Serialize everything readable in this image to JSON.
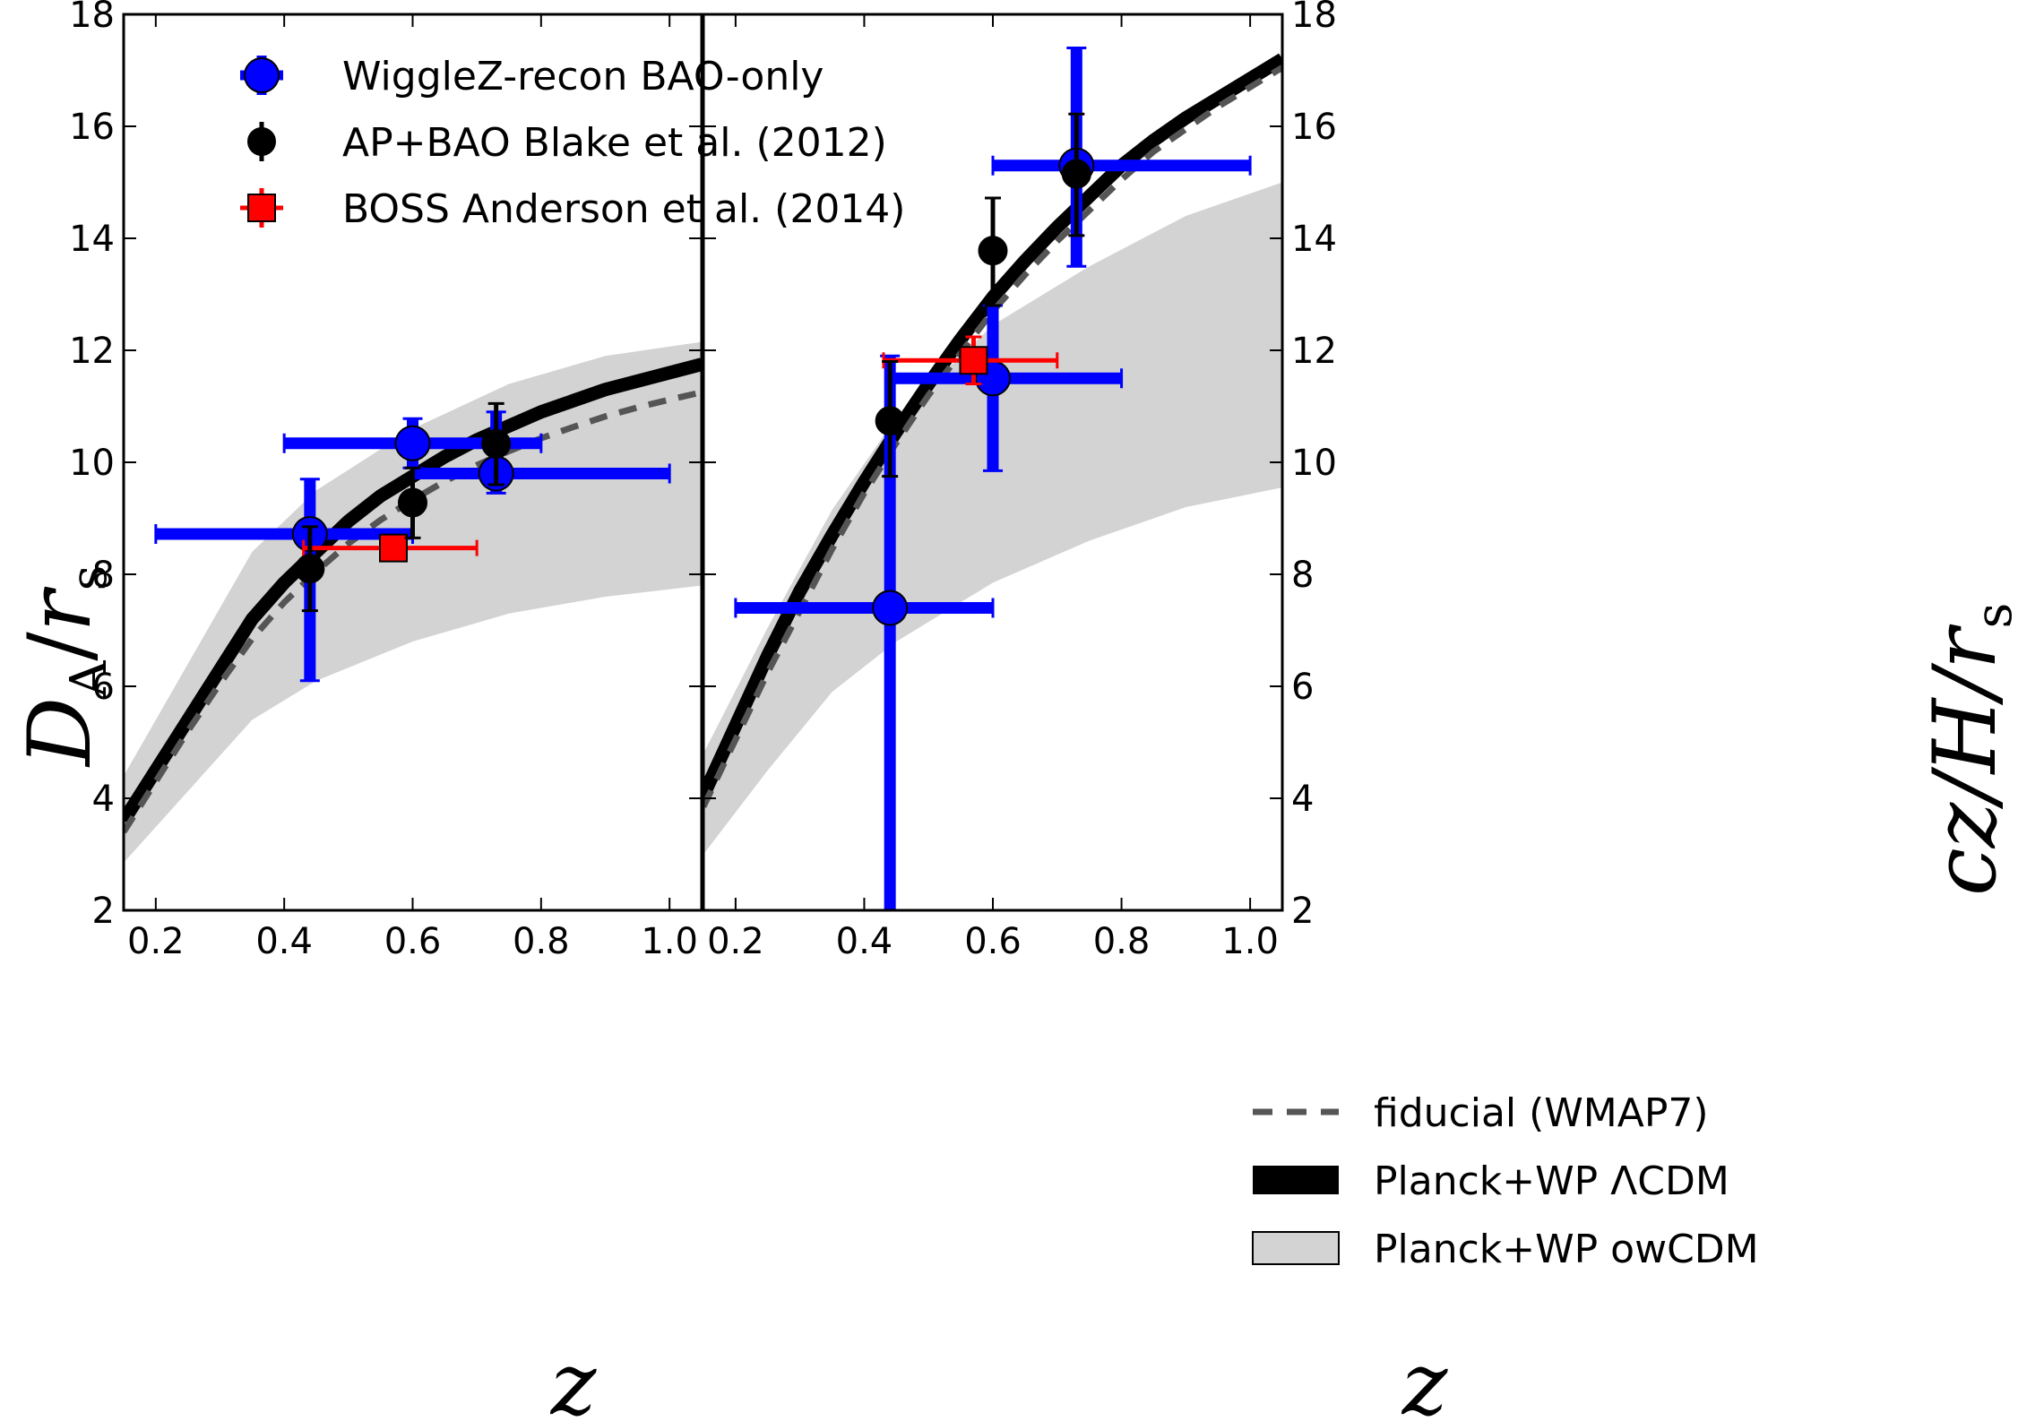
{
  "chart_data": [
    {
      "type": "scatter",
      "panel": "left",
      "xlabel": "z",
      "ylabel": "D_A/r_s",
      "ylabel_parts": {
        "main": "D",
        "sub1": "A",
        "slash": "/",
        "r": "r",
        "sub2": "s"
      },
      "xlim": [
        0.15,
        1.05
      ],
      "ylim": [
        2,
        18
      ],
      "xticks": [
        0.2,
        0.4,
        0.6,
        0.8,
        1.0
      ],
      "xtick_labels": [
        "0.2",
        "0.4",
        "0.6",
        "0.8",
        "1.0"
      ],
      "yticks": [
        2,
        4,
        6,
        8,
        10,
        12,
        14,
        16,
        18
      ],
      "ytick_labels": [
        "2",
        "4",
        "6",
        "8",
        "10",
        "12",
        "14",
        "16",
        "18"
      ],
      "legend": {
        "position": "top-left",
        "entries": [
          {
            "label": "WiggleZ-recon BAO-only",
            "color": "#0000ff",
            "marker": "circle"
          },
          {
            "label": "AP+BAO Blake et al. (2012)",
            "color": "#000000",
            "marker": "circle"
          },
          {
            "label": "BOSS Anderson et al. (2014)",
            "color": "#ff0000",
            "marker": "square"
          }
        ]
      },
      "series": [
        {
          "name": "WiggleZ-recon BAO-only",
          "color": "#0000ff",
          "marker": "circle",
          "points": [
            {
              "x": 0.44,
              "y": 8.72,
              "xerr": [
                0.2,
                0.6
              ],
              "yerr": [
                6.1,
                9.7
              ]
            },
            {
              "x": 0.6,
              "y": 10.34,
              "xerr": [
                0.4,
                0.8
              ],
              "yerr": [
                9.9,
                10.78
              ]
            },
            {
              "x": 0.73,
              "y": 9.8,
              "xerr": [
                0.6,
                1.0
              ],
              "yerr": [
                9.45,
                10.9
              ]
            }
          ]
        },
        {
          "name": "AP+BAO Blake et al. (2012)",
          "color": "#000000",
          "marker": "circle",
          "points": [
            {
              "x": 0.44,
              "y": 8.1,
              "yerr": [
                7.35,
                8.85
              ]
            },
            {
              "x": 0.6,
              "y": 9.28,
              "yerr": [
                8.65,
                9.9
              ]
            },
            {
              "x": 0.73,
              "y": 10.33,
              "yerr": [
                9.6,
                11.05
              ]
            }
          ]
        },
        {
          "name": "BOSS Anderson et al. (2014)",
          "color": "#ff0000",
          "marker": "square",
          "points": [
            {
              "x": 0.57,
              "y": 8.47,
              "xerr": [
                0.43,
                0.7
              ],
              "yerr": [
                8.33,
                8.61
              ]
            }
          ]
        },
        {
          "name": "fiducial (WMAP7)",
          "color": "#555555",
          "style": "dashed",
          "x": [
            0.15,
            0.2,
            0.25,
            0.3,
            0.35,
            0.4,
            0.45,
            0.5,
            0.55,
            0.6,
            0.65,
            0.7,
            0.75,
            0.8,
            0.85,
            0.9,
            0.95,
            1.0,
            1.05
          ],
          "y": [
            3.4,
            4.3,
            5.2,
            6.05,
            6.85,
            7.5,
            8.05,
            8.55,
            8.97,
            9.33,
            9.66,
            9.95,
            10.2,
            10.43,
            10.63,
            10.82,
            10.98,
            11.12,
            11.25
          ]
        },
        {
          "name": "Planck+WP ΛCDM",
          "color": "#000000",
          "style": "solid",
          "x": [
            0.15,
            0.2,
            0.25,
            0.3,
            0.35,
            0.4,
            0.45,
            0.5,
            0.55,
            0.6,
            0.65,
            0.7,
            0.75,
            0.8,
            0.85,
            0.9,
            0.95,
            1.0,
            1.05
          ],
          "y": [
            3.6,
            4.5,
            5.4,
            6.3,
            7.2,
            7.85,
            8.4,
            8.95,
            9.4,
            9.75,
            10.1,
            10.4,
            10.65,
            10.9,
            11.1,
            11.3,
            11.45,
            11.6,
            11.75
          ]
        },
        {
          "name": "Planck+WP owCDM",
          "color": "#d3d3d3",
          "style": "band",
          "x": [
            0.15,
            0.35,
            0.45,
            0.6,
            0.75,
            0.9,
            1.05
          ],
          "y_low": [
            2.85,
            5.4,
            6.1,
            6.8,
            7.3,
            7.6,
            7.8
          ],
          "y_high": [
            4.4,
            8.4,
            9.5,
            10.6,
            11.4,
            11.9,
            12.15
          ]
        }
      ]
    },
    {
      "type": "scatter",
      "panel": "right",
      "xlabel": "z",
      "ylabel": "cz/H/r_s",
      "ylabel_parts": {
        "main": "cz/H/r",
        "sub": "s"
      },
      "xlim": [
        0.15,
        1.05
      ],
      "ylim": [
        2,
        18
      ],
      "xticks": [
        0.2,
        0.4,
        0.6,
        0.8,
        1.0
      ],
      "xtick_labels": [
        "0.2",
        "0.4",
        "0.6",
        "0.8",
        "1.0"
      ],
      "yticks": [
        2,
        4,
        6,
        8,
        10,
        12,
        14,
        16,
        18
      ],
      "ytick_labels": [
        "2",
        "4",
        "6",
        "8",
        "10",
        "12",
        "14",
        "16",
        "18"
      ],
      "legend": {
        "position": "bottom-right",
        "entries": [
          {
            "label": "fiducial (WMAP7)",
            "style": "dashed",
            "color": "#555555"
          },
          {
            "label": "Planck+WP ΛCDM",
            "style": "solid",
            "color": "#000000"
          },
          {
            "label": "Planck+WP owCDM",
            "style": "band",
            "color": "#d3d3d3"
          }
        ]
      },
      "series": [
        {
          "name": "WiggleZ-recon BAO-only",
          "color": "#0000ff",
          "marker": "circle",
          "points": [
            {
              "x": 0.44,
              "y": 7.4,
              "xerr": [
                0.2,
                0.6
              ],
              "yerr": [
                2.0,
                11.9
              ]
            },
            {
              "x": 0.6,
              "y": 11.5,
              "xerr": [
                0.44,
                0.8
              ],
              "yerr": [
                9.85,
                12.8
              ]
            },
            {
              "x": 0.73,
              "y": 15.3,
              "xerr": [
                0.6,
                1.0
              ],
              "yerr": [
                13.5,
                17.4
              ]
            }
          ]
        },
        {
          "name": "AP+BAO Blake et al. (2012)",
          "color": "#000000",
          "marker": "circle",
          "points": [
            {
              "x": 0.44,
              "y": 10.74,
              "yerr": [
                9.75,
                11.8
              ]
            },
            {
              "x": 0.6,
              "y": 13.78,
              "yerr": [
                12.8,
                14.72
              ]
            },
            {
              "x": 0.73,
              "y": 15.15,
              "yerr": [
                14.05,
                16.22
              ]
            }
          ]
        },
        {
          "name": "BOSS Anderson et al. (2014)",
          "color": "#ff0000",
          "marker": "square",
          "points": [
            {
              "x": 0.57,
              "y": 11.82,
              "xerr": [
                0.43,
                0.7
              ],
              "yerr": [
                11.4,
                12.24
              ]
            }
          ]
        },
        {
          "name": "fiducial (WMAP7)",
          "color": "#555555",
          "style": "dashed",
          "x": [
            0.15,
            0.2,
            0.25,
            0.3,
            0.35,
            0.4,
            0.45,
            0.5,
            0.55,
            0.6,
            0.65,
            0.7,
            0.75,
            0.8,
            0.85,
            0.9,
            0.95,
            1.0,
            1.05
          ],
          "y": [
            3.85,
            5.05,
            6.25,
            7.35,
            8.45,
            9.45,
            10.35,
            11.2,
            11.95,
            12.7,
            13.35,
            13.95,
            14.5,
            15.05,
            15.55,
            15.95,
            16.35,
            16.7,
            17.05
          ]
        },
        {
          "name": "Planck+WP ΛCDM",
          "color": "#000000",
          "style": "solid",
          "x": [
            0.15,
            0.2,
            0.25,
            0.3,
            0.35,
            0.4,
            0.45,
            0.5,
            0.55,
            0.6,
            0.65,
            0.7,
            0.75,
            0.8,
            0.85,
            0.9,
            0.95,
            1.0,
            1.05
          ],
          "y": [
            4.05,
            5.3,
            6.55,
            7.7,
            8.7,
            9.65,
            10.55,
            11.4,
            12.2,
            12.95,
            13.6,
            14.2,
            14.75,
            15.3,
            15.75,
            16.15,
            16.5,
            16.85,
            17.2
          ]
        },
        {
          "name": "Planck+WP owCDM",
          "color": "#d3d3d3",
          "style": "band",
          "x": [
            0.15,
            0.25,
            0.35,
            0.45,
            0.6,
            0.75,
            0.9,
            1.05
          ],
          "y_low": [
            3.0,
            4.5,
            5.9,
            6.8,
            7.85,
            8.6,
            9.2,
            9.55
          ],
          "y_high": [
            4.8,
            7.05,
            9.15,
            10.8,
            12.45,
            13.5,
            14.4,
            15.0
          ]
        }
      ]
    }
  ]
}
